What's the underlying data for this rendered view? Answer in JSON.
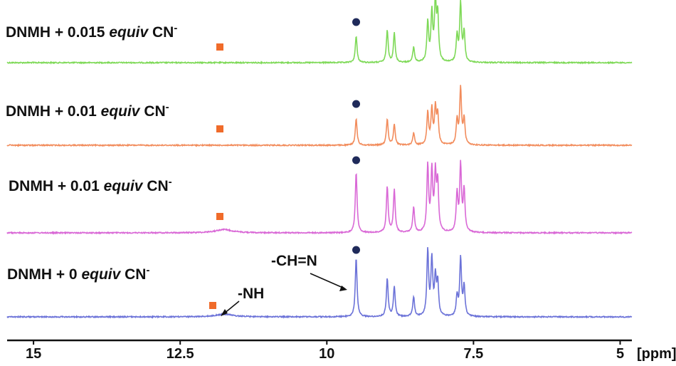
{
  "chart_data": {
    "type": "line",
    "x_axis": {
      "min": 4.8,
      "max": 15.45,
      "reversed": true,
      "ticks": [
        15,
        12.5,
        10,
        7.5,
        5
      ],
      "tick_labels": [
        "15",
        "12.5",
        "10",
        "7.5",
        "5"
      ],
      "unit_label": "[ppm]"
    },
    "colors": {
      "marker_square": "#f06b2a",
      "marker_circle": "#1f2a5a",
      "axis": "#111111"
    },
    "series": [
      {
        "label_prefix": "DNMH + 0.015 ",
        "label_italic": "equiv",
        "label_suffix": " CN",
        "label_sup": "-",
        "color": "#7ed957",
        "peaks": [
          {
            "ppm": 9.5,
            "h": 0.45
          },
          {
            "ppm": 8.97,
            "h": 0.55
          },
          {
            "ppm": 8.85,
            "h": 0.5
          },
          {
            "ppm": 8.52,
            "h": 0.26
          },
          {
            "ppm": 8.28,
            "h": 0.68
          },
          {
            "ppm": 8.21,
            "h": 0.82
          },
          {
            "ppm": 8.15,
            "h": 1.0
          },
          {
            "ppm": 8.11,
            "h": 0.78
          },
          {
            "ppm": 7.78,
            "h": 0.44
          },
          {
            "ppm": 7.72,
            "h": 1.0
          },
          {
            "ppm": 7.66,
            "h": 0.5
          }
        ]
      },
      {
        "label_prefix": "DNMH + 0.01 ",
        "label_italic": "equiv",
        "label_suffix": " CN",
        "label_sup": "-",
        "color": "#f28c5c",
        "peaks": [
          {
            "ppm": 9.5,
            "h": 0.45
          },
          {
            "ppm": 8.97,
            "h": 0.45
          },
          {
            "ppm": 8.85,
            "h": 0.36
          },
          {
            "ppm": 8.52,
            "h": 0.21
          },
          {
            "ppm": 8.28,
            "h": 0.55
          },
          {
            "ppm": 8.21,
            "h": 0.6
          },
          {
            "ppm": 8.15,
            "h": 0.6
          },
          {
            "ppm": 8.11,
            "h": 0.5
          },
          {
            "ppm": 7.78,
            "h": 0.42
          },
          {
            "ppm": 7.72,
            "h": 0.96
          },
          {
            "ppm": 7.66,
            "h": 0.44
          }
        ]
      },
      {
        "label_prefix": "DNMH + 0.01 ",
        "label_italic": "equiv",
        "label_suffix": " CN",
        "label_sup": "-",
        "color": "#d968d6",
        "peaks": [
          {
            "ppm": 9.5,
            "h": 0.92
          },
          {
            "ppm": 8.97,
            "h": 0.7
          },
          {
            "ppm": 8.85,
            "h": 0.65
          },
          {
            "ppm": 8.52,
            "h": 0.38
          },
          {
            "ppm": 8.28,
            "h": 1.0
          },
          {
            "ppm": 8.21,
            "h": 0.92
          },
          {
            "ppm": 8.15,
            "h": 0.85
          },
          {
            "ppm": 8.11,
            "h": 0.72
          },
          {
            "ppm": 7.78,
            "h": 0.58
          },
          {
            "ppm": 7.72,
            "h": 1.0
          },
          {
            "ppm": 7.66,
            "h": 0.64
          }
        ],
        "broad_hump": {
          "ppm": 11.75,
          "h": 0.05
        }
      },
      {
        "label_prefix": "DNMH + 0 ",
        "label_italic": "equiv",
        "label_suffix": " CN",
        "label_sup": "-",
        "color": "#6b72d8",
        "peaks": [
          {
            "ppm": 9.5,
            "h": 0.9
          },
          {
            "ppm": 8.97,
            "h": 0.58
          },
          {
            "ppm": 8.85,
            "h": 0.45
          },
          {
            "ppm": 8.52,
            "h": 0.3
          },
          {
            "ppm": 8.28,
            "h": 1.0
          },
          {
            "ppm": 8.21,
            "h": 0.86
          },
          {
            "ppm": 8.15,
            "h": 0.56
          },
          {
            "ppm": 8.11,
            "h": 0.5
          },
          {
            "ppm": 7.78,
            "h": 0.3
          },
          {
            "ppm": 7.72,
            "h": 0.88
          },
          {
            "ppm": 7.66,
            "h": 0.45
          }
        ],
        "broad_hump": {
          "ppm": 11.75,
          "h": 0.04
        }
      }
    ],
    "annotations": {
      "nh_label": "-NH",
      "ch_n_label": "-CH=N",
      "square_ppm": 11.75,
      "circle_ppm": 9.5
    }
  }
}
